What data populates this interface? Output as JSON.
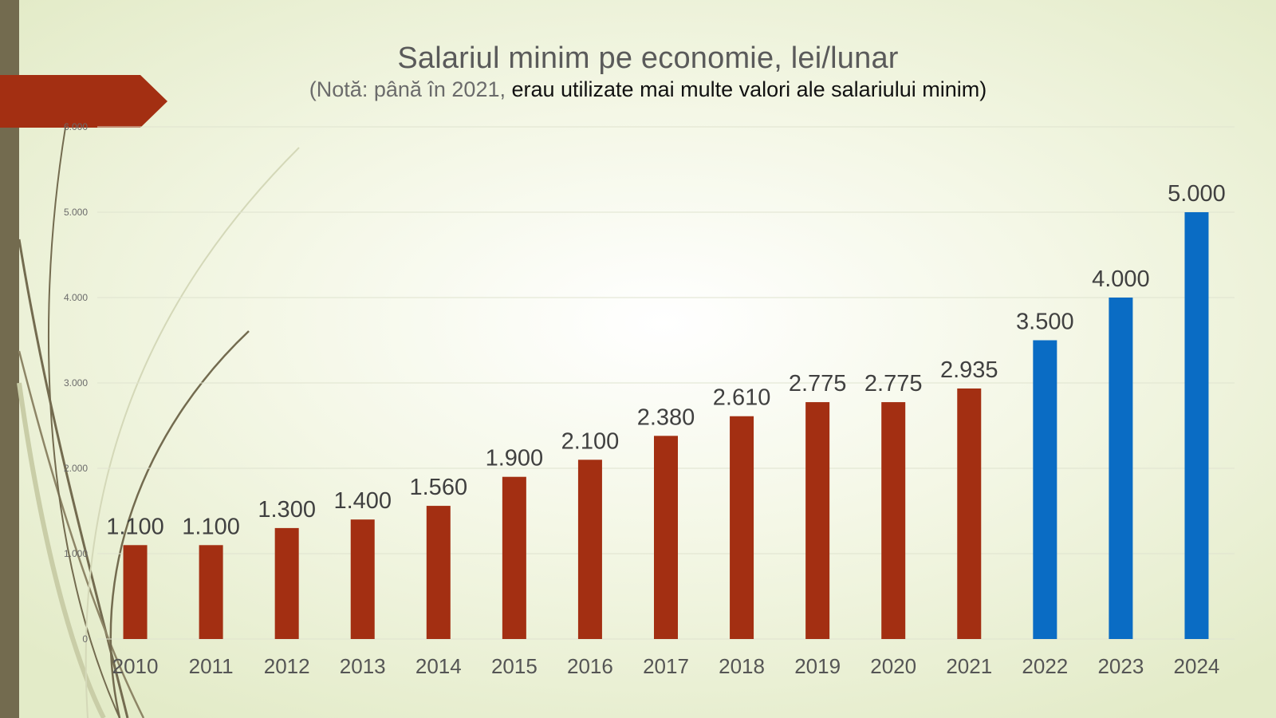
{
  "slide": {
    "title": "Salariul minim pe economie, lei/lunar",
    "subtitle_part1": "(Notă: până în 2021, ",
    "subtitle_part2": "erau utilizate mai multe valori ale salariului minim)",
    "colors": {
      "accent_red": "#a32f12",
      "accent_blue": "#0a6cc4",
      "stripe": "#736b4f"
    }
  },
  "chart_data": {
    "type": "bar",
    "title": "Salariul minim pe economie, lei/lunar",
    "subtitle": "(Notă: până în 2021, erau utilizate mai multe valori ale salariului minim)",
    "categories": [
      "2010",
      "2011",
      "2012",
      "2013",
      "2014",
      "2015",
      "2016",
      "2017",
      "2018",
      "2019",
      "2020",
      "2021",
      "2022",
      "2023",
      "2024"
    ],
    "values": [
      1100,
      1100,
      1300,
      1400,
      1560,
      1900,
      2100,
      2380,
      2610,
      2775,
      2775,
      2935,
      3500,
      4000,
      5000
    ],
    "value_labels": [
      "1.100",
      "1.100",
      "1.300",
      "1.400",
      "1.560",
      "1.900",
      "2.100",
      "2.380",
      "2.610",
      "2.775",
      "2.775",
      "2.935",
      "3.500",
      "4.000",
      "5.000"
    ],
    "bar_colors": [
      "#a32f12",
      "#a32f12",
      "#a32f12",
      "#a32f12",
      "#a32f12",
      "#a32f12",
      "#a32f12",
      "#a32f12",
      "#a32f12",
      "#a32f12",
      "#a32f12",
      "#a32f12",
      "#0a6cc4",
      "#0a6cc4",
      "#0a6cc4"
    ],
    "y_ticks": [
      0,
      1000,
      2000,
      3000,
      4000,
      5000,
      6000
    ],
    "y_tick_labels": [
      "0",
      "1.000",
      "2.000",
      "3.000",
      "4.000",
      "5.000",
      "6.000"
    ],
    "ylim": [
      0,
      6000
    ],
    "xlabel": "",
    "ylabel": "",
    "grid": true,
    "legend": "none"
  }
}
